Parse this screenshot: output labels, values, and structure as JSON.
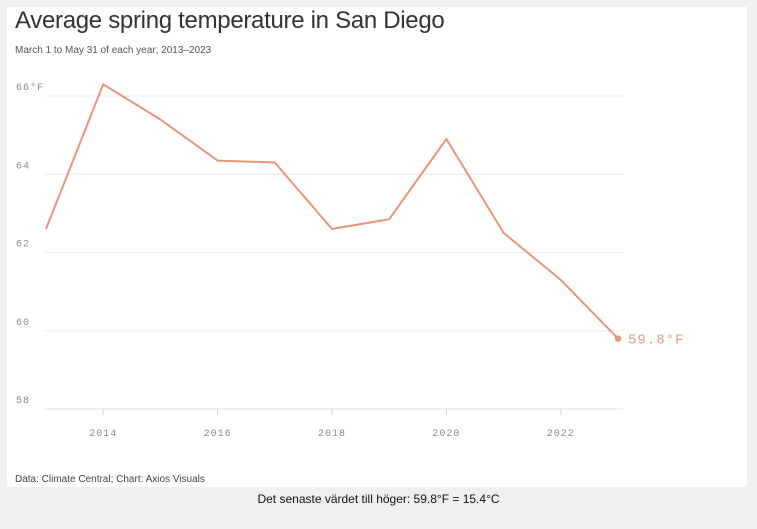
{
  "colors": {
    "line": "#e8957a",
    "grid": "#ececec",
    "axis": "#e0e0e0"
  },
  "chart_data": {
    "type": "line",
    "title": "Average spring temperature in San Diego",
    "subtitle": "March 1 to May 31 of each year; 2013–2023",
    "source": "Data: Climate Central; Chart: Axios Visuals",
    "xlabel": "",
    "ylabel": "",
    "xlim": [
      2013,
      2023
    ],
    "ylim": [
      58,
      66.5
    ],
    "yticks": [
      58,
      60,
      62,
      64,
      66
    ],
    "ytick_labels": [
      "58",
      "60",
      "62",
      "64",
      "66°F"
    ],
    "xticks": [
      2014,
      2016,
      2018,
      2020,
      2022
    ],
    "xtick_labels": [
      "2014",
      "2016",
      "2018",
      "2020",
      "2022"
    ],
    "grid": true,
    "series": [
      {
        "name": "Average spring temperature",
        "x": [
          2013,
          2014,
          2015,
          2016,
          2017,
          2018,
          2019,
          2020,
          2021,
          2022,
          2023
        ],
        "values": [
          62.6,
          66.3,
          65.4,
          64.35,
          64.3,
          62.6,
          62.85,
          64.9,
          62.5,
          61.3,
          59.8
        ]
      }
    ],
    "last_value_label": "59.8°F"
  },
  "caption": "Det senaste värdet till höger: 59.8°F = 15.4°C"
}
